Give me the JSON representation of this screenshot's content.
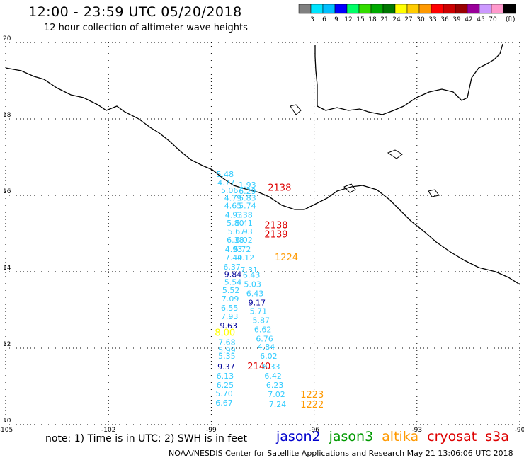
{
  "header": {
    "title": "12:00 - 23:59 UTC 05/20/2018",
    "subtitle": "12 hour collection of altimeter wave heights"
  },
  "color_scale": {
    "unit": "(ft)",
    "bins": [
      {
        "label": "",
        "color": "#808080"
      },
      {
        "label": "3",
        "color": "#00e5ff"
      },
      {
        "label": "6",
        "color": "#00bfff"
      },
      {
        "label": "9",
        "color": "#0000ff"
      },
      {
        "label": "12",
        "color": "#00ff66"
      },
      {
        "label": "15",
        "color": "#33dd00"
      },
      {
        "label": "18",
        "color": "#00aa00"
      },
      {
        "label": "21",
        "color": "#007700"
      },
      {
        "label": "24",
        "color": "#ffff00"
      },
      {
        "label": "27",
        "color": "#ffcc00"
      },
      {
        "label": "30",
        "color": "#ff9900"
      },
      {
        "label": "33",
        "color": "#ff0000"
      },
      {
        "label": "36",
        "color": "#cc0000"
      },
      {
        "label": "39",
        "color": "#990000"
      },
      {
        "label": "42",
        "color": "#990099"
      },
      {
        "label": "45",
        "color": "#cc99ff"
      },
      {
        "label": "70",
        "color": "#ff99cc"
      },
      {
        "label": "",
        "color": "#000000"
      }
    ]
  },
  "map": {
    "lon_range": [
      -105,
      -90
    ],
    "lat_range": [
      10,
      20
    ],
    "lon_ticks": [
      "-105",
      "-102",
      "-99",
      "-96",
      "-93",
      "-90"
    ],
    "lat_ticks": [
      "20",
      "18",
      "16",
      "14",
      "12",
      "10"
    ],
    "grid": "dotted"
  },
  "observations": [
    {
      "v": "5.48",
      "lon": -98.85,
      "lat": 16.48,
      "c": "#33ccff"
    },
    {
      "v": "4.77",
      "lon": -98.82,
      "lat": 16.26,
      "c": "#33ccff"
    },
    {
      "v": "1.93",
      "lon": -98.2,
      "lat": 16.2,
      "c": "#33ccff"
    },
    {
      "v": "5.06",
      "lon": -98.72,
      "lat": 16.06,
      "c": "#33ccff"
    },
    {
      "v": "6.29",
      "lon": -98.2,
      "lat": 16.04,
      "c": "#33ccff"
    },
    {
      "v": "4.79",
      "lon": -98.62,
      "lat": 15.86,
      "c": "#33ccff"
    },
    {
      "v": "5.83",
      "lon": -98.2,
      "lat": 15.86,
      "c": "#33ccff"
    },
    {
      "v": "4.65",
      "lon": -98.62,
      "lat": 15.66,
      "c": "#33ccff"
    },
    {
      "v": "5.74",
      "lon": -98.2,
      "lat": 15.66,
      "c": "#33ccff"
    },
    {
      "v": "4.93",
      "lon": -98.6,
      "lat": 15.42,
      "c": "#33ccff"
    },
    {
      "v": "6.38",
      "lon": -98.3,
      "lat": 15.42,
      "c": "#33ccff"
    },
    {
      "v": "5.80",
      "lon": -98.55,
      "lat": 15.2,
      "c": "#33ccff"
    },
    {
      "v": "5.41",
      "lon": -98.3,
      "lat": 15.2,
      "c": "#33ccff"
    },
    {
      "v": "5.67",
      "lon": -98.52,
      "lat": 14.98,
      "c": "#33ccff"
    },
    {
      "v": "5.93",
      "lon": -98.3,
      "lat": 14.98,
      "c": "#33ccff"
    },
    {
      "v": "6.38",
      "lon": -98.55,
      "lat": 14.76,
      "c": "#33ccff"
    },
    {
      "v": "6.02",
      "lon": -98.3,
      "lat": 14.76,
      "c": "#33ccff"
    },
    {
      "v": "4.93",
      "lon": -98.6,
      "lat": 14.52,
      "c": "#33ccff"
    },
    {
      "v": "5.72",
      "lon": -98.35,
      "lat": 14.52,
      "c": "#33ccff"
    },
    {
      "v": "7.40",
      "lon": -98.6,
      "lat": 14.3,
      "c": "#33ccff"
    },
    {
      "v": "4.12",
      "lon": -98.25,
      "lat": 14.3,
      "c": "#33ccff"
    },
    {
      "v": "6.37",
      "lon": -98.65,
      "lat": 14.06,
      "c": "#33ccff"
    },
    {
      "v": "7.31",
      "lon": -98.15,
      "lat": 13.98,
      "c": "#33ccff"
    },
    {
      "v": "9.84",
      "lon": -98.62,
      "lat": 13.86,
      "c": "#000099"
    },
    {
      "v": "6.43",
      "lon": -98.08,
      "lat": 13.84,
      "c": "#33ccff"
    },
    {
      "v": "5.54",
      "lon": -98.62,
      "lat": 13.66,
      "c": "#33ccff"
    },
    {
      "v": "5.03",
      "lon": -98.05,
      "lat": 13.6,
      "c": "#33ccff"
    },
    {
      "v": "5.52",
      "lon": -98.68,
      "lat": 13.44,
      "c": "#33ccff"
    },
    {
      "v": "6.43",
      "lon": -97.98,
      "lat": 13.36,
      "c": "#33ccff"
    },
    {
      "v": "7.09",
      "lon": -98.7,
      "lat": 13.22,
      "c": "#33ccff"
    },
    {
      "v": "9.17",
      "lon": -97.92,
      "lat": 13.12,
      "c": "#000099"
    },
    {
      "v": "6.55",
      "lon": -98.72,
      "lat": 12.98,
      "c": "#33ccff"
    },
    {
      "v": "5.71",
      "lon": -97.88,
      "lat": 12.9,
      "c": "#33ccff"
    },
    {
      "v": "7.93",
      "lon": -98.72,
      "lat": 12.76,
      "c": "#33ccff"
    },
    {
      "v": "5.87",
      "lon": -97.8,
      "lat": 12.66,
      "c": "#33ccff"
    },
    {
      "v": "9.63",
      "lon": -98.75,
      "lat": 12.52,
      "c": "#000099"
    },
    {
      "v": "6.62",
      "lon": -97.75,
      "lat": 12.42,
      "c": "#33ccff"
    },
    {
      "v": "6.76",
      "lon": -97.7,
      "lat": 12.18,
      "c": "#33ccff"
    },
    {
      "v": "7.68",
      "lon": -98.8,
      "lat": 12.08,
      "c": "#33ccff"
    },
    {
      "v": "4.84",
      "lon": -97.65,
      "lat": 11.96,
      "c": "#33ccff"
    },
    {
      "v": "5.99",
      "lon": -98.8,
      "lat": 11.88,
      "c": "#33ccff"
    },
    {
      "v": "6.02",
      "lon": -97.58,
      "lat": 11.72,
      "c": "#33ccff"
    },
    {
      "v": "5.35",
      "lon": -98.8,
      "lat": 11.72,
      "c": "#33ccff"
    },
    {
      "v": "9.37",
      "lon": -98.82,
      "lat": 11.44,
      "c": "#000099"
    },
    {
      "v": "6.33",
      "lon": -97.5,
      "lat": 11.44,
      "c": "#33ccff"
    },
    {
      "v": "6.13",
      "lon": -98.85,
      "lat": 11.2,
      "c": "#33ccff"
    },
    {
      "v": "6.42",
      "lon": -97.45,
      "lat": 11.2,
      "c": "#33ccff"
    },
    {
      "v": "6.25",
      "lon": -98.85,
      "lat": 10.96,
      "c": "#33ccff"
    },
    {
      "v": "6.23",
      "lon": -97.4,
      "lat": 10.96,
      "c": "#33ccff"
    },
    {
      "v": "5.70",
      "lon": -98.88,
      "lat": 10.74,
      "c": "#33ccff"
    },
    {
      "v": "7.02",
      "lon": -97.35,
      "lat": 10.72,
      "c": "#33ccff"
    },
    {
      "v": "6.67",
      "lon": -98.88,
      "lat": 10.5,
      "c": "#33ccff"
    },
    {
      "v": "7.24",
      "lon": -97.32,
      "lat": 10.46,
      "c": "#33ccff"
    }
  ],
  "pass_labels": [
    {
      "text": "2138",
      "lon": -97.35,
      "lat": 16.12,
      "c": "#dd0000"
    },
    {
      "text": "2138",
      "lon": -97.45,
      "lat": 15.14,
      "c": "#dd0000"
    },
    {
      "text": "2139",
      "lon": -97.45,
      "lat": 14.9,
      "c": "#dd0000"
    },
    {
      "text": "1224",
      "lon": -97.15,
      "lat": 14.3,
      "c": "#ff9900"
    },
    {
      "text": "2140",
      "lon": -97.95,
      "lat": 11.44,
      "c": "#dd0000"
    },
    {
      "text": "1223",
      "lon": -96.4,
      "lat": 10.7,
      "c": "#ff9900"
    },
    {
      "text": "1222",
      "lon": -96.4,
      "lat": 10.44,
      "c": "#ff9900"
    },
    {
      "text": "8.00",
      "lon": -98.9,
      "lat": 12.32,
      "c": "#ffff00"
    }
  ],
  "footer": {
    "note": "note: 1) Time is in UTC; 2) SWH is in feet",
    "satellites": [
      {
        "name": "jason2",
        "color": "#0000cc"
      },
      {
        "name": "jason3",
        "color": "#009900"
      },
      {
        "name": "altika",
        "color": "#ff9900"
      },
      {
        "name": "cryosat",
        "color": "#dd0000"
      },
      {
        "name": "s3a",
        "color": "#dd0000"
      }
    ],
    "credit": "NOAA/NESDIS Center for Satellite Applications and Research     May 21 13:06:06 UTC 2018"
  }
}
